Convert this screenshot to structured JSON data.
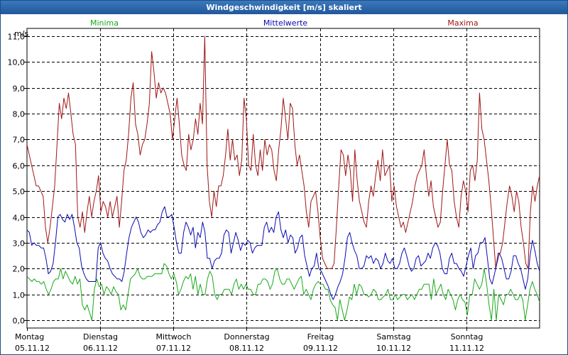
{
  "window": {
    "title": "Windgeschwindigkeit [m/s] skaliert"
  },
  "colors": {
    "min": "#1aa81a",
    "mean": "#0a0ab4",
    "max": "#a01515",
    "grid": "#000000"
  },
  "chart_data": {
    "type": "line",
    "title": "Windgeschwindigkeit [m/s] skaliert",
    "ylabel": "m/s",
    "ylim": [
      -0.3,
      11.3
    ],
    "yticks": [
      0,
      1,
      2,
      3,
      4,
      5,
      6,
      7,
      8,
      9,
      10,
      11
    ],
    "ytick_labels": [
      "0,0",
      "1,0",
      "2,0",
      "3,0",
      "4,0",
      "5,0",
      "6,0",
      "7,0",
      "8,0",
      "9,0",
      "10,0",
      "11,0"
    ],
    "xlim": [
      0,
      7
    ],
    "days": [
      {
        "day": "Montag",
        "date": "05.11.12"
      },
      {
        "day": "Dienstag",
        "date": "06.11.12"
      },
      {
        "day": "Mittwoch",
        "date": "07.11.12"
      },
      {
        "day": "Donnerstag",
        "date": "08.11.12"
      },
      {
        "day": "Freitag",
        "date": "09.11.12"
      },
      {
        "day": "Samstag",
        "date": "10.11.12"
      },
      {
        "day": "Sonntag",
        "date": "11.11.12"
      }
    ],
    "legend": {
      "min": "Minima",
      "mean": "Mittelwerte",
      "max": "Maxima"
    },
    "series": [
      {
        "key": "max",
        "name": "Maxima",
        "values": [
          6.8,
          6.4,
          6.0,
          5.6,
          5.2,
          5.2,
          5.0,
          4.8,
          3.6,
          3.0,
          3.6,
          4.4,
          5.2,
          6.8,
          8.4,
          7.8,
          8.6,
          8.2,
          8.8,
          8.0,
          7.2,
          6.8,
          4.0,
          3.6,
          4.2,
          3.4,
          4.2,
          4.8,
          4.0,
          4.6,
          5.0,
          5.6,
          4.2,
          4.6,
          4.4,
          4.0,
          4.6,
          4.0,
          4.4,
          4.8,
          3.6,
          4.6,
          5.8,
          6.2,
          7.2,
          8.6,
          9.2,
          7.6,
          7.2,
          6.4,
          6.8,
          7.0,
          7.6,
          8.4,
          10.4,
          9.6,
          8.6,
          9.2,
          8.8,
          9.0,
          8.8,
          8.4,
          8.0,
          7.0,
          7.8,
          8.6,
          7.6,
          6.4,
          6.0,
          5.8,
          7.2,
          6.6,
          7.0,
          7.8,
          7.2,
          8.4,
          7.6,
          11.0,
          6.0,
          4.6,
          4.0,
          5.0,
          4.4,
          5.2,
          5.2,
          5.6,
          6.4,
          7.4,
          6.2,
          7.0,
          6.2,
          6.4,
          5.6,
          6.2,
          8.6,
          7.8,
          6.0,
          5.8,
          7.2,
          6.0,
          5.6,
          6.6,
          5.8,
          7.0,
          6.4,
          6.8,
          6.6,
          5.8,
          5.4,
          6.6,
          7.4,
          8.6,
          7.8,
          7.0,
          8.4,
          8.2,
          6.8,
          6.0,
          6.4,
          5.8,
          5.2,
          4.2,
          3.6,
          4.6,
          4.8,
          5.0,
          4.2,
          3.2,
          2.4,
          2.2,
          2.0,
          2.0,
          2.0,
          2.2,
          3.6,
          5.2,
          6.6,
          6.4,
          5.6,
          6.4,
          5.8,
          4.6,
          6.6,
          5.4,
          4.6,
          4.2,
          3.8,
          3.6,
          4.6,
          5.2,
          4.8,
          5.6,
          6.2,
          5.4,
          6.6,
          5.6,
          5.8,
          6.0,
          4.6,
          5.2,
          4.4,
          4.0,
          3.6,
          3.8,
          3.4,
          3.8,
          4.2,
          4.6,
          5.2,
          5.6,
          5.8,
          6.0,
          6.6,
          5.6,
          4.8,
          5.4,
          4.4,
          4.0,
          3.6,
          3.8,
          5.0,
          6.0,
          7.0,
          6.0,
          5.8,
          4.6,
          4.0,
          3.6,
          4.8,
          5.4,
          5.0,
          4.2,
          5.8,
          6.0,
          5.4,
          6.2,
          8.8,
          7.4,
          7.0,
          6.2,
          5.4,
          4.4,
          3.2,
          2.0,
          2.6,
          2.6,
          3.0,
          3.8,
          4.6,
          5.2,
          4.8,
          4.2,
          5.0,
          4.6,
          3.6,
          3.0,
          2.2,
          2.0,
          4.2,
          5.2,
          4.6,
          5.2,
          5.6
        ]
      },
      {
        "key": "mean",
        "name": "Mittelwerte",
        "values": [
          3.5,
          3.4,
          2.9,
          3.0,
          2.9,
          2.9,
          2.8,
          2.8,
          2.4,
          1.8,
          1.9,
          2.2,
          3.0,
          4.0,
          4.1,
          3.9,
          3.8,
          4.1,
          3.9,
          4.1,
          3.6,
          3.0,
          2.8,
          2.1,
          1.8,
          1.6,
          1.5,
          1.5,
          1.5,
          1.5,
          2.8,
          3.0,
          2.6,
          2.4,
          2.3,
          2.0,
          1.8,
          1.7,
          1.6,
          1.6,
          1.5,
          1.9,
          2.6,
          3.2,
          3.6,
          3.8,
          4.0,
          3.8,
          3.4,
          3.2,
          3.3,
          3.5,
          3.4,
          3.5,
          3.5,
          3.7,
          3.8,
          4.2,
          4.4,
          4.0,
          4.0,
          4.1,
          3.6,
          3.0,
          2.6,
          2.6,
          3.4,
          3.8,
          3.6,
          3.3,
          3.6,
          2.8,
          3.4,
          3.2,
          3.8,
          3.4,
          2.4,
          2.4,
          2.0,
          2.3,
          2.4,
          2.4,
          2.6,
          3.3,
          3.5,
          3.4,
          2.6,
          3.0,
          3.4,
          3.1,
          2.7,
          3.0,
          2.9,
          3.1,
          3.0,
          2.6,
          2.8,
          2.9,
          2.9,
          2.9,
          3.6,
          3.8,
          3.4,
          3.6,
          3.4,
          4.0,
          4.2,
          3.5,
          3.2,
          3.5,
          3.0,
          3.3,
          3.2,
          2.6,
          2.8,
          3.2,
          3.3,
          2.5,
          2.1,
          1.7,
          2.0,
          2.1,
          2.6,
          2.0,
          1.9,
          1.7,
          1.5,
          1.3,
          1.0,
          0.8,
          1.0,
          1.3,
          1.5,
          1.8,
          2.4,
          3.2,
          3.4,
          3.0,
          2.7,
          2.5,
          2.0,
          2.0,
          2.1,
          2.5,
          2.4,
          2.5,
          2.2,
          2.4,
          2.3,
          2.0,
          2.2,
          2.6,
          2.3,
          2.2,
          2.4,
          2.0,
          2.0,
          2.2,
          2.6,
          2.8,
          2.5,
          2.1,
          1.9,
          2.0,
          2.4,
          2.5,
          2.1,
          2.2,
          2.3,
          2.6,
          2.4,
          2.8,
          3.0,
          2.9,
          2.6,
          2.0,
          1.8,
          1.8,
          2.4,
          2.6,
          2.2,
          2.2,
          2.0,
          1.9,
          1.7,
          2.1,
          2.5,
          2.8,
          2.0,
          2.5,
          2.6,
          3.0,
          3.0,
          3.2,
          2.4,
          1.6,
          1.4,
          1.8,
          2.2,
          2.6,
          2.4,
          2.0,
          1.6,
          1.6,
          1.9,
          2.5,
          2.5,
          2.2,
          2.0,
          1.6,
          1.2,
          1.6,
          2.5,
          3.1,
          2.7,
          2.2,
          1.9
        ]
      },
      {
        "key": "min",
        "name": "Minima",
        "values": [
          1.7,
          1.6,
          1.5,
          1.6,
          1.5,
          1.5,
          1.4,
          1.5,
          1.2,
          1.0,
          1.2,
          1.5,
          1.6,
          1.6,
          2.0,
          1.6,
          1.9,
          1.7,
          1.5,
          1.4,
          1.7,
          1.4,
          1.6,
          0.6,
          0.4,
          0.6,
          0.3,
          0.0,
          1.2,
          1.6,
          1.3,
          1.4,
          1.0,
          1.3,
          1.2,
          1.0,
          1.3,
          1.1,
          1.0,
          0.4,
          0.6,
          0.4,
          1.0,
          1.6,
          1.7,
          1.8,
          2.0,
          1.7,
          1.6,
          1.6,
          1.7,
          1.7,
          1.7,
          1.8,
          1.8,
          1.8,
          1.8,
          2.2,
          2.1,
          1.8,
          1.6,
          1.8,
          1.5,
          1.0,
          1.2,
          1.5,
          1.7,
          1.6,
          1.8,
          1.2,
          1.7,
          1.0,
          1.4,
          1.0,
          1.0,
          1.6,
          1.9,
          1.7,
          1.0,
          0.8,
          1.0,
          1.0,
          1.2,
          1.2,
          1.2,
          1.0,
          1.4,
          1.6,
          1.2,
          1.4,
          1.2,
          1.4,
          1.2,
          1.2,
          1.0,
          1.0,
          1.4,
          1.4,
          1.6,
          1.6,
          1.5,
          1.2,
          1.4,
          1.9,
          2.0,
          1.6,
          1.4,
          1.4,
          1.6,
          1.6,
          1.4,
          1.2,
          1.4,
          1.6,
          1.7,
          1.0,
          1.2,
          1.0,
          0.8,
          1.2,
          1.4,
          1.5,
          1.4,
          1.4,
          1.2,
          1.2,
          0.8,
          0.6,
          0.5,
          0.0,
          0.8,
          0.4,
          0.0,
          0.4,
          0.9,
          0.8,
          1.4,
          1.0,
          1.4,
          1.3,
          1.0,
          1.0,
          0.9,
          1.0,
          1.2,
          1.1,
          0.8,
          0.8,
          0.9,
          1.0,
          1.2,
          0.8,
          0.8,
          1.0,
          0.8,
          0.9,
          1.0,
          1.0,
          0.8,
          0.9,
          1.0,
          0.8,
          1.0,
          1.2,
          1.2,
          1.4,
          1.4,
          1.4,
          0.8,
          1.6,
          1.0,
          1.2,
          1.4,
          1.0,
          0.8,
          1.2,
          1.0,
          0.8,
          0.4,
          0.8,
          1.0,
          0.8,
          0.7,
          0.2,
          1.0,
          1.0,
          1.6,
          1.4,
          1.2,
          1.4,
          2.0,
          1.4,
          0.6,
          0.0,
          1.2,
          0.0,
          1.0,
          0.8,
          0.6,
          1.0,
          1.0,
          1.2,
          1.0,
          0.8,
          0.8,
          1.0,
          0.8,
          0.0,
          0.6,
          1.2,
          1.5,
          1.2,
          1.0,
          0.7
        ]
      }
    ]
  }
}
